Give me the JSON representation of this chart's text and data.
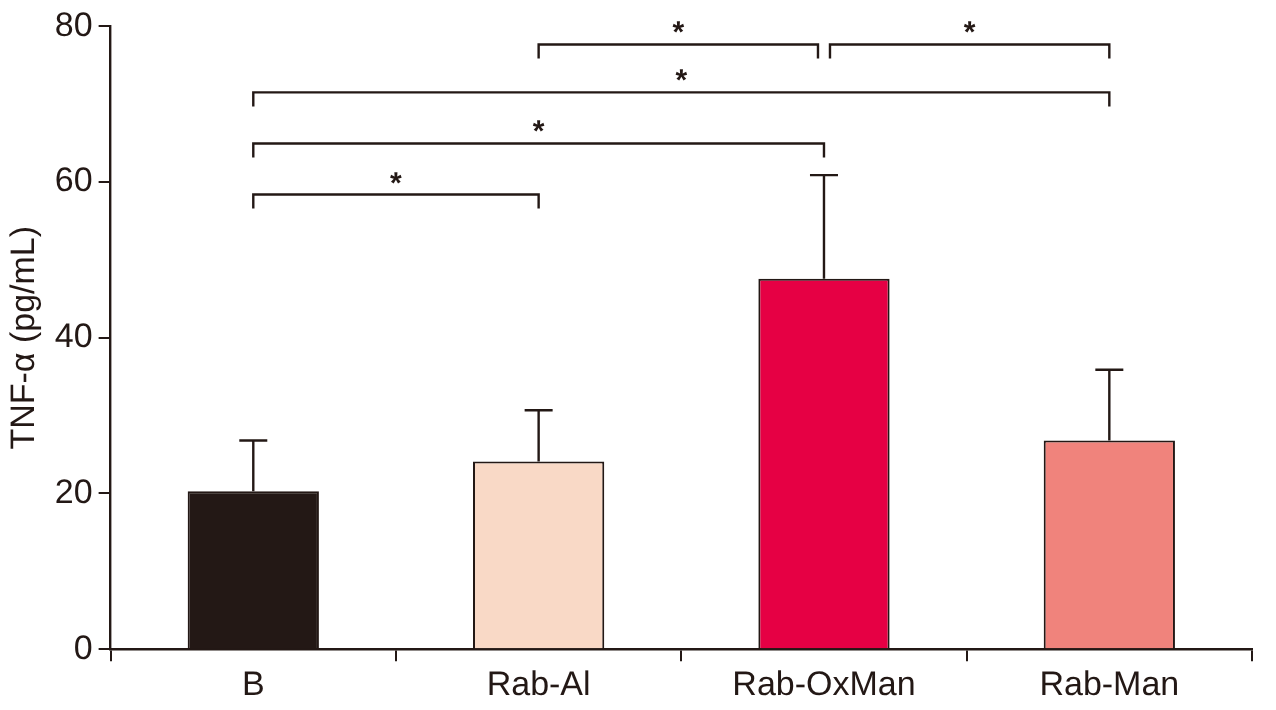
{
  "chart_data": {
    "type": "bar",
    "ylabel": "TNF-α (pg/mL)",
    "categories": [
      "B",
      "Rab-Al",
      "Rab-OxMan",
      "Rab-Man"
    ],
    "values": [
      20.3,
      24.1,
      47.6,
      26.8
    ],
    "colors": [
      "#231815",
      "#f9d9c6",
      "#e60044",
      "#f0837c"
    ],
    "errors": [
      [
        20.3,
        26.8
      ],
      [
        24.1,
        30.7
      ],
      [
        47.6,
        60.9
      ],
      [
        26.8,
        35.9
      ]
    ],
    "ylim": [
      0,
      80
    ],
    "yticks": [
      0,
      20,
      40,
      60,
      80
    ],
    "grid": false,
    "legend": false,
    "annotations": [
      "*",
      "*",
      "*",
      "*",
      "*"
    ]
  }
}
